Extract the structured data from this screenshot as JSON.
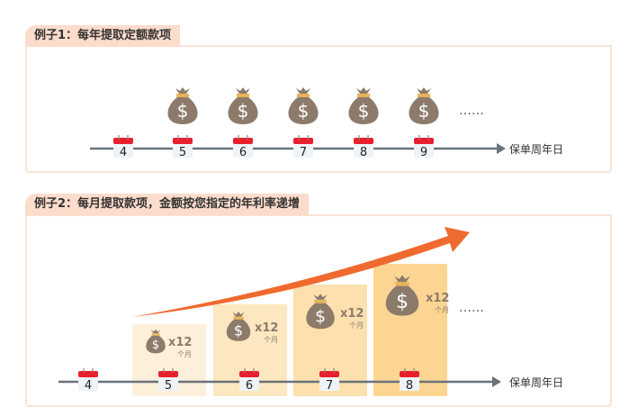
{
  "example1": {
    "title": "例子1：每年提取定额款项",
    "days": [
      "4",
      "5",
      "6",
      "7",
      "8",
      "9"
    ],
    "bag_from_index": 1,
    "ellipsis": "……",
    "axis_label": "保单周年日"
  },
  "example2": {
    "title": "例子2：每月提取款项，金额按您指定的年利率递增",
    "days": [
      "4",
      "5",
      "6",
      "7",
      "8"
    ],
    "multiplier": "x12",
    "unit": "个月",
    "ellipsis": "……",
    "axis_label": "保单周年日"
  },
  "colors": {
    "tab": "#fcdccb",
    "border": "#fbe3d6",
    "bag": "#8c7b6b",
    "calendar": "#e8202e",
    "arrow": "#ef6a2e",
    "bar_light": "#fdf0dc",
    "bar_dark": "#fdd58e",
    "axis": "#68737a"
  }
}
